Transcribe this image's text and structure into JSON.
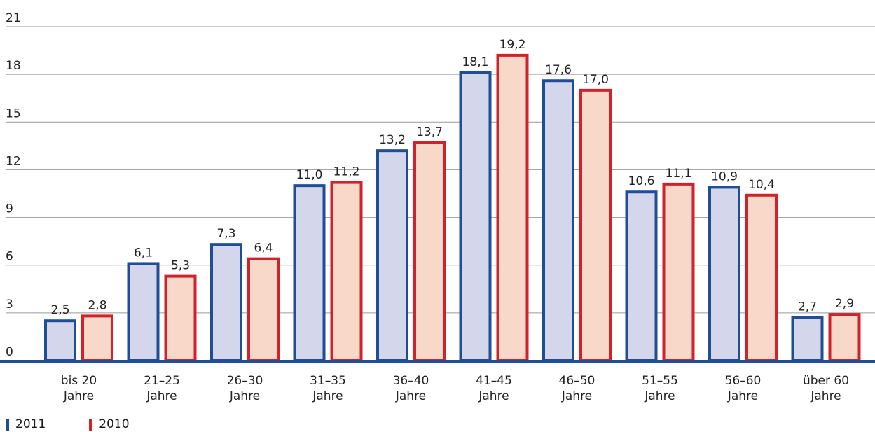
{
  "chart_data": {
    "type": "bar",
    "categories": [
      [
        "bis 20",
        "Jahre"
      ],
      [
        "21–25",
        "Jahre"
      ],
      [
        "26–30",
        "Jahre"
      ],
      [
        "31–35",
        "Jahre"
      ],
      [
        "36–40",
        "Jahre"
      ],
      [
        "41–45",
        "Jahre"
      ],
      [
        "46–50",
        "Jahre"
      ],
      [
        "51–55",
        "Jahre"
      ],
      [
        "56–60",
        "Jahre"
      ],
      [
        "über 60",
        "Jahre"
      ]
    ],
    "series": [
      {
        "name": "2011",
        "values": [
          2.5,
          6.1,
          7.3,
          11.0,
          13.2,
          18.1,
          17.6,
          10.6,
          10.9,
          2.7
        ],
        "labels": [
          "2,5",
          "6,1",
          "7,3",
          "11,0",
          "13,2",
          "18,1",
          "17,6",
          "10,6",
          "10,9",
          "2,7"
        ],
        "stroke": "#1f4e96",
        "fill": "#d4d6ec"
      },
      {
        "name": "2010",
        "values": [
          2.8,
          5.3,
          6.4,
          11.2,
          13.7,
          19.2,
          17.0,
          11.1,
          10.4,
          2.9
        ],
        "labels": [
          "2,8",
          "5,3",
          "6,4",
          "11,2",
          "13,7",
          "19,2",
          "17,0",
          "11,1",
          "10,4",
          "2,9"
        ],
        "stroke": "#d0222b",
        "fill": "#f7d8c9"
      }
    ],
    "yticks": [
      0,
      3,
      6,
      9,
      12,
      15,
      18,
      21
    ],
    "ylim": [
      0,
      21
    ],
    "grid": true,
    "grid_color": "#9a9a9a",
    "axis_color": "#1f4e96",
    "legend_position": "bottom-left"
  },
  "legend": [
    {
      "label": "2011",
      "color": "#1f4e96"
    },
    {
      "label": "2010",
      "color": "#d0222b"
    }
  ]
}
